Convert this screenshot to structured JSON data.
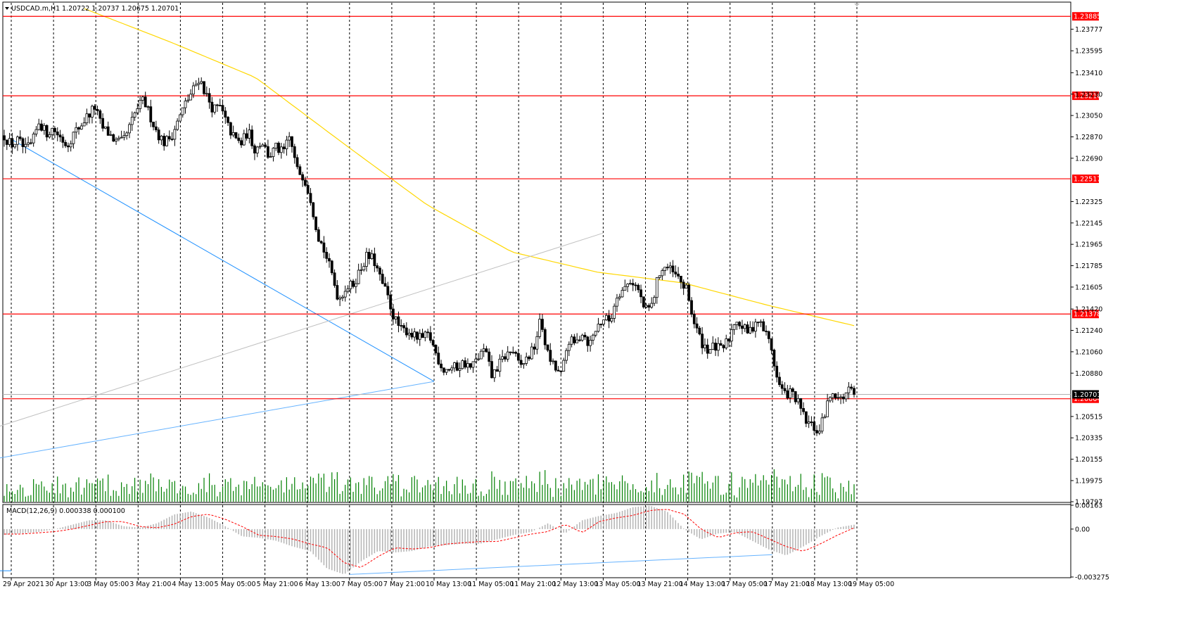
{
  "header": {
    "symbol_text": "USDCAD.m,H1",
    "ohlc_text": "1.20722 1.20737 1.20675 1.20701"
  },
  "macd": {
    "label": "MACD(12,26,9) 0.000338 0.000100",
    "scale_labels": [
      "0.00163",
      "0.00",
      "-0.003275"
    ],
    "scale_values": [
      0.00163,
      0.0,
      -0.003275
    ]
  },
  "chart_data": [
    {
      "type": "candlestick",
      "symbol": "USDCAD.m",
      "timeframe": "H1",
      "current_price": 1.20701,
      "ylim": [
        1.19797,
        1.23999
      ],
      "price_ticks": [
        "1.23777",
        "1.23595",
        "1.23410",
        "1.23230",
        "1.23050",
        "1.22870",
        "1.22690",
        "1.22325",
        "1.22145",
        "1.21965",
        "1.21785",
        "1.21605",
        "1.21420",
        "1.21240",
        "1.21060",
        "1.20880",
        "1.20515",
        "1.20335",
        "1.20155",
        "1.19975",
        "1.19797"
      ],
      "time_labels": [
        "29 Apr 2021",
        "30 Apr 13:00",
        "3 May 05:00",
        "3 May 21:00",
        "4 May 13:00",
        "5 May 05:00",
        "5 May 21:00",
        "6 May 13:00",
        "7 May 05:00",
        "7 May 21:00",
        "10 May 13:00",
        "11 May 05:00",
        "11 May 21:00",
        "12 May 13:00",
        "13 May 05:00",
        "13 May 21:00",
        "14 May 13:00",
        "17 May 05:00",
        "17 May 21:00",
        "18 May 13:00",
        "19 May 05:00"
      ],
      "horizontal_levels": [
        {
          "price": 1.23885,
          "label": "1.23885"
        },
        {
          "price": 1.23216,
          "label": "1.23216"
        },
        {
          "price": 1.22517,
          "label": "1.22517"
        },
        {
          "price": 1.21378,
          "label": "1.21378"
        },
        {
          "price": 1.20664,
          "label": "1.20664"
        }
      ],
      "bid_label": "1.20701",
      "close_path": [
        1.2288,
        1.228,
        1.2284,
        1.2276,
        1.2281,
        1.23,
        1.229,
        1.2294,
        1.2287,
        1.228,
        1.229,
        1.2297,
        1.2305,
        1.2312,
        1.2295,
        1.229,
        1.2283,
        1.2282,
        1.2295,
        1.231,
        1.2318,
        1.2304,
        1.229,
        1.2282,
        1.2288,
        1.2301,
        1.2315,
        1.2325,
        1.2337,
        1.2322,
        1.231,
        1.2312,
        1.2297,
        1.2286,
        1.2281,
        1.2292,
        1.2276,
        1.2284,
        1.227,
        1.2278,
        1.2273,
        1.2287,
        1.2259,
        1.2254,
        1.2235,
        1.2205,
        1.219,
        1.2172,
        1.215,
        1.216,
        1.2162,
        1.2174,
        1.2186,
        1.2184,
        1.2167,
        1.2153,
        1.2134,
        1.2124,
        1.2124,
        1.2118,
        1.2117,
        1.212,
        1.2104,
        1.2091,
        1.2092,
        1.2093,
        1.2097,
        1.2092,
        1.2101,
        1.2108,
        1.2085,
        1.2095,
        1.2103,
        1.2107,
        1.2093,
        1.21,
        1.2108,
        1.2133,
        1.2104,
        1.2092,
        1.2086,
        1.2116,
        1.2112,
        1.2123,
        1.2112,
        1.2126,
        1.2134,
        1.2132,
        1.2155,
        1.2159,
        1.2167,
        1.2158,
        1.214,
        1.2145,
        1.2173,
        1.2178,
        1.2172,
        1.2166,
        1.2157,
        1.2131,
        1.2115,
        1.2108,
        1.211,
        1.2107,
        1.2117,
        1.2135,
        1.2126,
        1.2122,
        1.2134,
        1.2125,
        1.2113,
        1.2081,
        1.207,
        1.2072,
        1.2062,
        1.2048,
        1.2043,
        1.2038,
        1.2059,
        1.2074,
        1.2065,
        1.2072,
        1.2075
      ],
      "ma_line": {
        "color": "#ffd700",
        "values": [
          1.2395,
          1.2367,
          1.2337,
          1.2283,
          1.223,
          1.219,
          1.2173,
          1.2164,
          1.2145,
          1.2128
        ]
      },
      "trendlines": [
        {
          "color": "#1e90ff",
          "points": [
            [
              "29 Apr 2021",
              1.2285
            ],
            [
              "10 May 13:00",
              1.2081
            ]
          ]
        },
        {
          "color": "#66b3ff",
          "points": [
            [
              "10 May 13:00",
              1.2081
            ],
            [
              "18 May 05:00",
              1.2012
            ]
          ]
        },
        {
          "color": "#c0c0c0",
          "points": [
            [
              "13 May 05:00",
              1.2206
            ],
            [
              "19 May 13:00",
              1.2035
            ]
          ]
        }
      ],
      "grid": "vertical-dashed"
    },
    {
      "type": "bar",
      "name": "volume",
      "color": "#008000"
    },
    {
      "type": "histogram+line",
      "name": "MACD(12,26,9)",
      "macd": 0.000338,
      "signal": 0.0001,
      "ylim": [
        -0.003275,
        0.00163
      ],
      "histogram_color": "#b4b4b4",
      "signal_color": "#ff0000",
      "path": [
        -0.0004,
        -0.0003,
        -0.0002,
        0.0,
        0.0003,
        0.0006,
        0.0006,
        0.0002,
        0.0001,
        0.0004,
        0.001,
        0.0012,
        0.0008,
        0.0002,
        -0.0005,
        -0.0006,
        -0.0008,
        -0.0012,
        -0.0015,
        -0.0027,
        -0.0031,
        -0.0022,
        -0.0015,
        -0.0016,
        -0.0015,
        -0.0012,
        -0.0011,
        -0.001,
        -0.001,
        -0.0007,
        -0.0004,
        -0.0002,
        0.0004,
        -0.0003,
        0.0006,
        0.0009,
        0.0011,
        0.0015,
        0.0016,
        0.0012,
        0.0,
        -0.0007,
        -0.0003,
        -0.0002,
        -0.0008,
        -0.0014,
        -0.0018,
        -0.0012,
        -0.0005,
        0.0001,
        0.0003
      ],
      "trendlines": [
        {
          "color": "#1e90ff",
          "points": [
            [
              "29 Apr 2021",
              -0.00285
            ],
            [
              "6 May 21:00",
              -0.00285
            ]
          ]
        },
        {
          "color": "#66b3ff",
          "points": [
            [
              "7 May 05:00",
              -0.0031
            ],
            [
              "17 May 21:00",
              -0.00175
            ]
          ]
        }
      ]
    }
  ]
}
